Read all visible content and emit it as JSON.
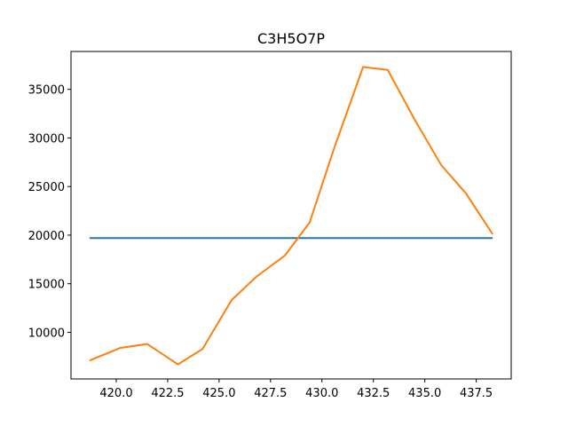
{
  "chart_data": {
    "type": "line",
    "title": "C3H5O7P",
    "xlabel": "",
    "ylabel": "",
    "xlim": [
      417.8,
      439.2
    ],
    "ylim": [
      5200,
      38900
    ],
    "grid": false,
    "x_ticks": [
      420.0,
      422.5,
      425.0,
      427.5,
      430.0,
      432.5,
      435.0,
      437.5
    ],
    "x_tick_labels": [
      "420.0",
      "422.5",
      "425.0",
      "427.5",
      "430.0",
      "432.5",
      "435.0",
      "437.5"
    ],
    "y_ticks": [
      10000,
      15000,
      20000,
      25000,
      30000,
      35000
    ],
    "y_tick_labels": [
      "10000",
      "15000",
      "20000",
      "25000",
      "30000",
      "35000"
    ],
    "series": [
      {
        "color": "#1f77b4",
        "x": [
          418.7,
          438.3
        ],
        "y": [
          19700,
          19700
        ]
      },
      {
        "color": "#ff7f0e",
        "x": [
          418.7,
          420.2,
          421.5,
          423.0,
          424.2,
          425.6,
          426.8,
          428.2,
          429.4,
          430.6,
          432.0,
          433.2,
          434.5,
          435.8,
          437.0,
          438.3
        ],
        "y": [
          7100,
          8400,
          8800,
          6700,
          8300,
          13300,
          15700,
          17900,
          21300,
          29000,
          37300,
          37000,
          31900,
          27200,
          24300,
          20100
        ]
      }
    ]
  }
}
